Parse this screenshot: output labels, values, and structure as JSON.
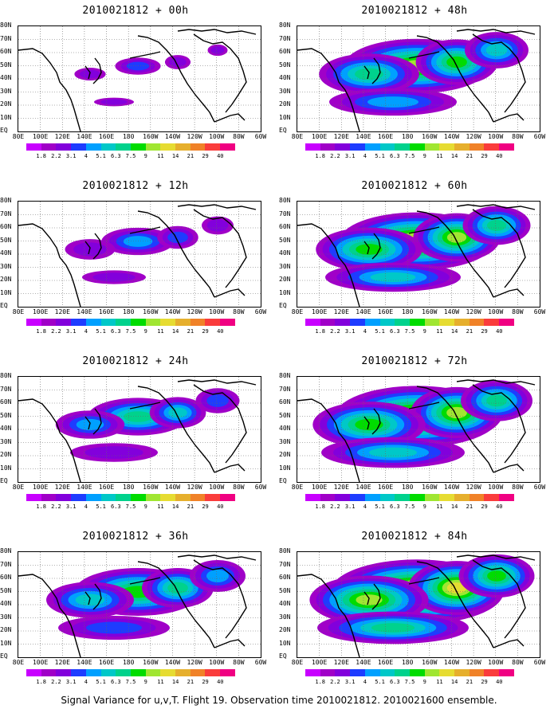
{
  "panels": [
    {
      "title": "2010021812 + 00h",
      "intensity": 0.25
    },
    {
      "title": "2010021812 + 12h",
      "intensity": 0.4
    },
    {
      "title": "2010021812 + 24h",
      "intensity": 0.55
    },
    {
      "title": "2010021812 + 36h",
      "intensity": 0.7
    },
    {
      "title": "2010021812 + 48h",
      "intensity": 0.8
    },
    {
      "title": "2010021812 + 60h",
      "intensity": 0.85
    },
    {
      "title": "2010021812 + 72h",
      "intensity": 0.9
    },
    {
      "title": "2010021812 + 84h",
      "intensity": 0.95
    }
  ],
  "lat_labels": [
    "80N",
    "70N",
    "60N",
    "50N",
    "40N",
    "30N",
    "20N",
    "10N",
    "EQ"
  ],
  "lon_labels": [
    "80E",
    "100E",
    "120E",
    "140E",
    "160E",
    "180",
    "160W",
    "140W",
    "120W",
    "100W",
    "80W",
    "60W"
  ],
  "colorbar": {
    "labels": [
      "1.8",
      "2.2",
      "3.1",
      "4",
      "5.1",
      "6.3",
      "7.5",
      "9",
      "11",
      "14",
      "21",
      "29",
      "40"
    ],
    "colors": [
      "#a000c8",
      "#8200dc",
      "#1e3cff",
      "#00a0ff",
      "#00c8c8",
      "#00d28c",
      "#00dc00",
      "#a0e632",
      "#e6dc32",
      "#e6af2d",
      "#f08228",
      "#fa3c3c",
      "#f00082"
    ]
  },
  "caption": "Signal Variance for u,v,T. Flight 19. Observation time 2010021812. 2010021600 ensemble."
}
